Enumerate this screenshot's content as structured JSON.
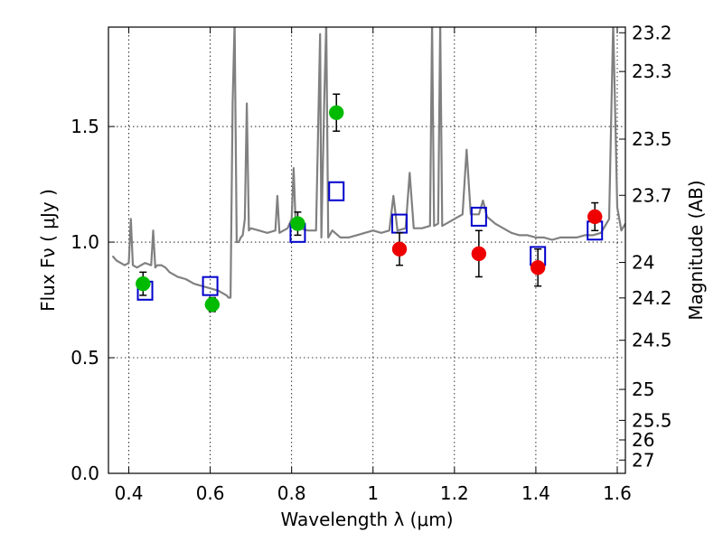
{
  "chart_data": {
    "type": "scatter",
    "xlabel": "Wavelength  λ (μm)",
    "ylabel": "Flux  Fν  ( μJy )",
    "y2label": "Magnitude (AB)",
    "xlim": [
      0.35,
      1.62
    ],
    "ylim": [
      0.0,
      1.93
    ],
    "grid": true,
    "x_ticks": [
      {
        "value": 0.4,
        "label": "0.4"
      },
      {
        "value": 0.6,
        "label": "0.6"
      },
      {
        "value": 0.8,
        "label": "0.8"
      },
      {
        "value": 1.0,
        "label": "1"
      },
      {
        "value": 1.2,
        "label": "1.2"
      },
      {
        "value": 1.4,
        "label": "1.4"
      },
      {
        "value": 1.6,
        "label": "1.6"
      }
    ],
    "y_ticks": [
      {
        "value": 0.0,
        "label": "0.0"
      },
      {
        "value": 0.5,
        "label": "0.5"
      },
      {
        "value": 1.0,
        "label": "1.0"
      },
      {
        "value": 1.5,
        "label": "1.5"
      }
    ],
    "y2_ticks": [
      {
        "value": 23.2,
        "label": "23.2"
      },
      {
        "value": 23.3,
        "label": "23.3"
      },
      {
        "value": 23.5,
        "label": "23.5"
      },
      {
        "value": 23.7,
        "label": "23.7"
      },
      {
        "value": 24.0,
        "label": "24"
      },
      {
        "value": 24.2,
        "label": "24.2"
      },
      {
        "value": 24.5,
        "label": "24.5"
      },
      {
        "value": 25.0,
        "label": "25"
      },
      {
        "value": 25.5,
        "label": "25.5"
      },
      {
        "value": 26.0,
        "label": "26"
      },
      {
        "value": 27.0,
        "label": "27"
      }
    ],
    "series": [
      {
        "style": "line",
        "color": "#808080",
        "points": [
          [
            0.36,
            0.94
          ],
          [
            0.37,
            0.92
          ],
          [
            0.38,
            0.91
          ],
          [
            0.39,
            0.9
          ],
          [
            0.4,
            0.91
          ],
          [
            0.405,
            1.1
          ],
          [
            0.41,
            0.9
          ],
          [
            0.42,
            0.89
          ],
          [
            0.44,
            0.91
          ],
          [
            0.455,
            0.9
          ],
          [
            0.46,
            1.05
          ],
          [
            0.465,
            0.89
          ],
          [
            0.47,
            0.9
          ],
          [
            0.48,
            0.9
          ],
          [
            0.49,
            0.89
          ],
          [
            0.5,
            0.87
          ],
          [
            0.52,
            0.85
          ],
          [
            0.54,
            0.84
          ],
          [
            0.56,
            0.82
          ],
          [
            0.58,
            0.81
          ],
          [
            0.6,
            0.8
          ],
          [
            0.62,
            0.79
          ],
          [
            0.63,
            0.78
          ],
          [
            0.64,
            0.77
          ],
          [
            0.645,
            0.76
          ],
          [
            0.65,
            0.76
          ],
          [
            0.655,
            1.6
          ],
          [
            0.66,
            1.95
          ],
          [
            0.665,
            1.0
          ],
          [
            0.67,
            1.0
          ],
          [
            0.675,
            1.02
          ],
          [
            0.68,
            1.03
          ],
          [
            0.685,
            1.1
          ],
          [
            0.69,
            1.6
          ],
          [
            0.695,
            1.05
          ],
          [
            0.7,
            1.06
          ],
          [
            0.72,
            1.05
          ],
          [
            0.74,
            1.04
          ],
          [
            0.76,
            1.05
          ],
          [
            0.765,
            1.2
          ],
          [
            0.77,
            1.04
          ],
          [
            0.78,
            1.05
          ],
          [
            0.79,
            1.06
          ],
          [
            0.8,
            1.1
          ],
          [
            0.805,
            1.32
          ],
          [
            0.81,
            1.07
          ],
          [
            0.82,
            1.06
          ],
          [
            0.84,
            1.05
          ],
          [
            0.86,
            1.05
          ],
          [
            0.87,
            1.9
          ],
          [
            0.873,
            1.02
          ],
          [
            0.88,
            1.6
          ],
          [
            0.885,
            1.95
          ],
          [
            0.89,
            1.02
          ],
          [
            0.9,
            1.05
          ],
          [
            0.92,
            1.02
          ],
          [
            0.94,
            1.02
          ],
          [
            0.96,
            1.03
          ],
          [
            0.98,
            1.04
          ],
          [
            1.0,
            1.05
          ],
          [
            1.02,
            1.04
          ],
          [
            1.04,
            1.05
          ],
          [
            1.05,
            1.2
          ],
          [
            1.06,
            1.05
          ],
          [
            1.08,
            1.06
          ],
          [
            1.09,
            1.3
          ],
          [
            1.1,
            1.06
          ],
          [
            1.12,
            1.06
          ],
          [
            1.14,
            1.07
          ],
          [
            1.145,
            1.95
          ],
          [
            1.15,
            1.07
          ],
          [
            1.16,
            1.08
          ],
          [
            1.165,
            1.95
          ],
          [
            1.17,
            1.07
          ],
          [
            1.18,
            1.08
          ],
          [
            1.2,
            1.1
          ],
          [
            1.22,
            1.12
          ],
          [
            1.23,
            1.4
          ],
          [
            1.24,
            1.12
          ],
          [
            1.26,
            1.12
          ],
          [
            1.27,
            1.18
          ],
          [
            1.28,
            1.11
          ],
          [
            1.3,
            1.08
          ],
          [
            1.32,
            1.06
          ],
          [
            1.34,
            1.04
          ],
          [
            1.36,
            1.03
          ],
          [
            1.38,
            1.03
          ],
          [
            1.4,
            1.02
          ],
          [
            1.42,
            1.02
          ],
          [
            1.44,
            1.01
          ],
          [
            1.46,
            1.02
          ],
          [
            1.48,
            1.02
          ],
          [
            1.5,
            1.02
          ],
          [
            1.52,
            1.03
          ],
          [
            1.54,
            1.03
          ],
          [
            1.56,
            1.04
          ],
          [
            1.58,
            1.1
          ],
          [
            1.59,
            1.95
          ],
          [
            1.6,
            1.15
          ],
          [
            1.61,
            1.05
          ],
          [
            1.62,
            1.08
          ]
        ]
      },
      {
        "style": "open-square",
        "color": "#0000cc",
        "points": [
          [
            0.44,
            0.79
          ],
          [
            0.6,
            0.81
          ],
          [
            0.815,
            1.04
          ],
          [
            0.91,
            1.22
          ],
          [
            1.065,
            1.08
          ],
          [
            1.26,
            1.11
          ],
          [
            1.405,
            0.94
          ],
          [
            1.545,
            1.05
          ]
        ]
      },
      {
        "style": "filled-circle",
        "color": "#00bb00",
        "points": [
          {
            "x": 0.435,
            "y": 0.82,
            "err": 0.05
          },
          {
            "x": 0.605,
            "y": 0.73,
            "err": 0.03
          },
          {
            "x": 0.815,
            "y": 1.08,
            "err": 0.05
          },
          {
            "x": 0.91,
            "y": 1.56,
            "err": 0.08
          }
        ]
      },
      {
        "style": "filled-circle",
        "color": "#ee0000",
        "points": [
          {
            "x": 1.065,
            "y": 0.97,
            "err": 0.07
          },
          {
            "x": 1.26,
            "y": 0.95,
            "err": 0.1
          },
          {
            "x": 1.405,
            "y": 0.89,
            "err": 0.08
          },
          {
            "x": 1.545,
            "y": 1.11,
            "err": 0.06
          }
        ]
      }
    ]
  }
}
